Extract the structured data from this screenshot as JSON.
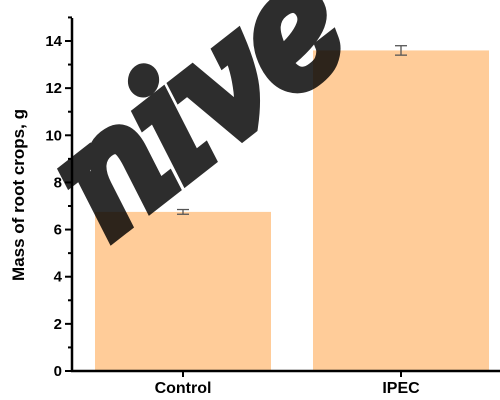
{
  "chart_data": {
    "type": "bar",
    "categories": [
      "Control",
      "IPEC"
    ],
    "series": [
      {
        "values": [
          6.75,
          13.6
        ],
        "errors": [
          0.1,
          0.2
        ]
      }
    ],
    "title": "",
    "xlabel": "",
    "ylabel": "Mass of root crops, g",
    "ylim": [
      0,
      15
    ],
    "yticks": [
      0,
      2,
      4,
      6,
      8,
      10,
      12,
      14
    ],
    "grid": false,
    "bar_color": "#FFCC99",
    "error_color": "#555555"
  },
  "watermark": {
    "text": "nive",
    "color": "#000000"
  }
}
